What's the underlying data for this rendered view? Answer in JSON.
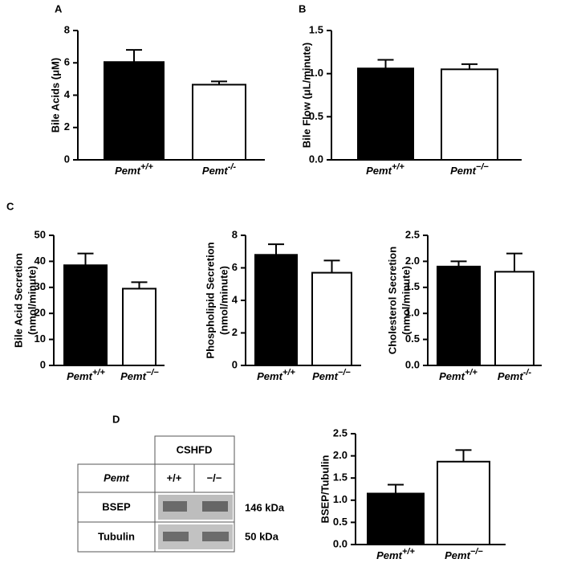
{
  "chart_data": [
    {
      "type": "bar",
      "panel_label": "A",
      "ylabel": "Bile Acids (μM)",
      "categories": [
        "Pemt",
        "Pemt"
      ],
      "category_superscripts": [
        "+/+",
        "-/-"
      ],
      "values": [
        6.05,
        4.65
      ],
      "errors": [
        0.75,
        0.2
      ],
      "colors": [
        "#000000",
        "#ffffff"
      ],
      "ylim": [
        0,
        8
      ],
      "yticks": [
        0,
        2,
        4,
        6,
        8
      ]
    },
    {
      "type": "bar",
      "panel_label": "B",
      "ylabel": "Bile Flow (μL/minute)",
      "categories": [
        "Pemt",
        "Pemt"
      ],
      "category_superscripts": [
        "+/+",
        "−/−"
      ],
      "values": [
        1.06,
        1.05
      ],
      "errors": [
        0.1,
        0.06
      ],
      "colors": [
        "#000000",
        "#ffffff"
      ],
      "ylim": [
        0,
        1.5
      ],
      "yticks": [
        {
          "value": 0,
          "label": "0.0"
        },
        {
          "value": 0.5,
          "label": "0.5"
        },
        {
          "value": 1,
          "label": "1.0"
        },
        {
          "value": 1.5,
          "label": "1.5"
        }
      ]
    },
    {
      "type": "bar",
      "panel_label": "C",
      "ylabel": [
        "Bile Acid Secretion",
        "(nmol/minute)"
      ],
      "categories": [
        "Pemt",
        "Pemt"
      ],
      "category_superscripts": [
        "+/+",
        "−/−"
      ],
      "values": [
        38.5,
        29.5
      ],
      "errors": [
        4.5,
        2.5
      ],
      "colors": [
        "#000000",
        "#ffffff"
      ],
      "ylim": [
        0,
        50
      ],
      "yticks": [
        0,
        10,
        20,
        30,
        40,
        50
      ]
    },
    {
      "type": "bar",
      "ylabel": [
        "Phospholipid Secretion",
        "(nmol/minute)"
      ],
      "categories": [
        "Pemt",
        "Pemt"
      ],
      "category_superscripts": [
        "+/+",
        "−/−"
      ],
      "values": [
        6.8,
        5.7
      ],
      "errors": [
        0.65,
        0.75
      ],
      "colors": [
        "#000000",
        "#ffffff"
      ],
      "ylim": [
        0,
        8
      ],
      "yticks": [
        0,
        2,
        4,
        6,
        8
      ]
    },
    {
      "type": "bar",
      "ylabel": [
        "Cholesterol Secretion",
        "(nmol/minute)"
      ],
      "categories": [
        "Pemt",
        "Pemt"
      ],
      "category_superscripts": [
        "+/+",
        "-/-"
      ],
      "values": [
        1.9,
        1.8
      ],
      "errors": [
        0.1,
        0.35
      ],
      "colors": [
        "#000000",
        "#ffffff"
      ],
      "ylim": [
        0,
        2.5
      ],
      "yticks": [
        {
          "value": 0,
          "label": "0.0"
        },
        {
          "value": 0.5,
          "label": "0.5"
        },
        {
          "value": 1,
          "label": "1.0"
        },
        {
          "value": 1.5,
          "label": "1.5"
        },
        {
          "value": 2,
          "label": "2.0"
        },
        {
          "value": 2.5,
          "label": "2.5"
        }
      ]
    },
    {
      "type": "bar",
      "panel_label": "D",
      "ylabel": "BSEP/Tubulin",
      "categories": [
        "Pemt",
        "Pemt"
      ],
      "category_superscripts": [
        "+/+",
        "−/−"
      ],
      "values": [
        1.15,
        1.87
      ],
      "errors": [
        0.2,
        0.26
      ],
      "colors": [
        "#000000",
        "#ffffff"
      ],
      "ylim": [
        0,
        2.5
      ],
      "yticks": [
        {
          "value": 0,
          "label": "0.0"
        },
        {
          "value": 0.5,
          "label": "0.5"
        },
        {
          "value": 1,
          "label": "1.0"
        },
        {
          "value": 1.5,
          "label": "1.5"
        },
        {
          "value": 2,
          "label": "2.0"
        },
        {
          "value": 2.5,
          "label": "2.5"
        }
      ]
    }
  ],
  "blot": {
    "header": "CSHFD",
    "row_label": "Pemt",
    "genotypes": [
      "+/+",
      "−/−"
    ],
    "rows": [
      {
        "name": "BSEP",
        "size": "146 kDa"
      },
      {
        "name": "Tubulin",
        "size": "50 kDa"
      }
    ]
  }
}
